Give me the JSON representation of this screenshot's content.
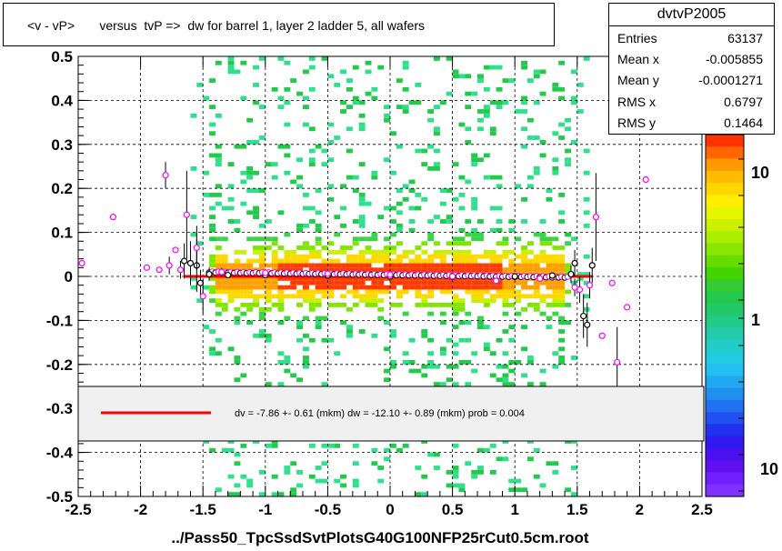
{
  "title": "<v - vP>       versus  tvP =>  dw for barrel 1, layer 2 ladder 5, all wafers",
  "stats": {
    "name": "dvtvP2005",
    "rows": [
      {
        "label": "Entries",
        "value": "63137"
      },
      {
        "label": "Mean x",
        "value": "-0.005855"
      },
      {
        "label": "Mean y",
        "value": "-0.0001271"
      },
      {
        "label": "RMS x",
        "value": "0.6797"
      },
      {
        "label": "RMS y",
        "value": "0.1464"
      }
    ]
  },
  "xlabel": "../Pass50_TpcSsdSvtPlotsG40G100NFP25rCut0.5cm.root",
  "legend_text": "dv =   -7.86 +-  0.61 (mkm) dw =  -12.10 +-  0.89 (mkm) prob = 0.004",
  "colorbar_labels": [
    "10",
    "1",
    "10"
  ],
  "colors": {
    "fit_line": "#ff0000",
    "profile_black": "#000000",
    "profile_magenta": "#ff00ff"
  },
  "chart_data": {
    "type": "heatmap",
    "xlim": [
      -2.5,
      2.5
    ],
    "ylim": [
      -0.5,
      0.5
    ],
    "xticks": [
      "-2.5",
      "-2",
      "-1.5",
      "-1",
      "-0.5",
      "0",
      "0.5",
      "1",
      "1.5",
      "2",
      "2.5"
    ],
    "yticks": [
      "0.5",
      "0.4",
      "0.3",
      "0.2",
      "0.1",
      "0",
      "-0.1",
      "-0.2",
      "-0.3",
      "-0.4",
      "-0.5"
    ],
    "grid": true,
    "fit_line": {
      "x": [
        -1.65,
        1.62
      ],
      "y": [
        0.0,
        0.0
      ]
    },
    "profile_black": [
      {
        "x": -1.65,
        "y": 0.035,
        "err": 0.04
      },
      {
        "x": -1.6,
        "y": 0.03,
        "err": 0.05
      },
      {
        "x": -1.55,
        "y": 0.025,
        "err": 0.06
      },
      {
        "x": -1.52,
        "y": -0.015,
        "err": 0.03
      },
      {
        "x": -1.45,
        "y": 0.005,
        "err": 0.015
      },
      {
        "x": -1.3,
        "y": 0.003,
        "err": 0.006
      },
      {
        "x": -1.0,
        "y": 0.003,
        "err": 0.004
      },
      {
        "x": -0.5,
        "y": 0.002,
        "err": 0.003
      },
      {
        "x": 0.0,
        "y": 0.0,
        "err": 0.003
      },
      {
        "x": 0.5,
        "y": -0.001,
        "err": 0.003
      },
      {
        "x": 1.0,
        "y": 0.0,
        "err": 0.004
      },
      {
        "x": 1.3,
        "y": 0.002,
        "err": 0.006
      },
      {
        "x": 1.45,
        "y": 0.005,
        "err": 0.02
      },
      {
        "x": 1.48,
        "y": 0.03,
        "err": 0.03
      },
      {
        "x": 1.55,
        "y": -0.09,
        "err": 0.05
      },
      {
        "x": 1.58,
        "y": -0.11,
        "err": 0.05
      },
      {
        "x": 1.62,
        "y": 0.025,
        "err": 0.04
      }
    ],
    "profile_magenta": [
      {
        "x": -2.47,
        "y": 0.03,
        "err": 0.0
      },
      {
        "x": -2.22,
        "y": 0.135,
        "err": 0.0
      },
      {
        "x": -1.95,
        "y": 0.02,
        "err": 0.0
      },
      {
        "x": -1.85,
        "y": 0.015,
        "err": 0.0
      },
      {
        "x": -1.8,
        "y": 0.23,
        "err": 0.03
      },
      {
        "x": -1.77,
        "y": 0.025,
        "err": 0.02
      },
      {
        "x": -1.72,
        "y": 0.06,
        "err": 0.0
      },
      {
        "x": -1.68,
        "y": 0.015,
        "err": 0.02
      },
      {
        "x": -1.63,
        "y": 0.14,
        "err": 0.1
      },
      {
        "x": -1.55,
        "y": 0.065,
        "err": 0.05
      },
      {
        "x": -1.5,
        "y": -0.045,
        "err": 0.04
      },
      {
        "x": -1.35,
        "y": 0.01,
        "err": 0.01
      },
      {
        "x": -1.0,
        "y": 0.008,
        "err": 0.004
      },
      {
        "x": -0.5,
        "y": 0.006,
        "err": 0.003
      },
      {
        "x": 0.0,
        "y": 0.004,
        "err": 0.003
      },
      {
        "x": 0.5,
        "y": 0.0,
        "err": 0.003
      },
      {
        "x": 0.85,
        "y": -0.01,
        "err": 0.004
      },
      {
        "x": 1.2,
        "y": -0.005,
        "err": 0.006
      },
      {
        "x": 1.48,
        "y": -0.025,
        "err": 0.02
      },
      {
        "x": 1.52,
        "y": -0.03,
        "err": 0.03
      },
      {
        "x": 1.6,
        "y": -0.02,
        "err": 0.03
      },
      {
        "x": 1.65,
        "y": 0.135,
        "err": 0.1
      },
      {
        "x": 1.7,
        "y": -0.135,
        "err": 0.0
      },
      {
        "x": 1.78,
        "y": -0.015,
        "err": 0.0
      },
      {
        "x": 1.82,
        "y": -0.195,
        "err": 0.08
      },
      {
        "x": 1.9,
        "y": -0.07,
        "err": 0.0
      },
      {
        "x": 2.05,
        "y": 0.22,
        "err": 0.0
      }
    ]
  }
}
